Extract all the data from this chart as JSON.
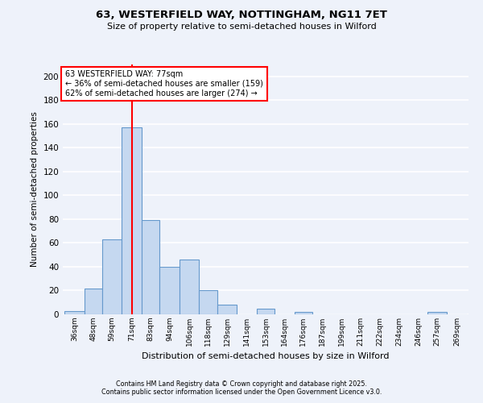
{
  "title": "63, WESTERFIELD WAY, NOTTINGHAM, NG11 7ET",
  "subtitle": "Size of property relative to semi-detached houses in Wilford",
  "xlabel": "Distribution of semi-detached houses by size in Wilford",
  "ylabel": "Number of semi-detached properties",
  "bar_labels": [
    "36sqm",
    "48sqm",
    "59sqm",
    "71sqm",
    "83sqm",
    "94sqm",
    "106sqm",
    "118sqm",
    "129sqm",
    "141sqm",
    "153sqm",
    "164sqm",
    "176sqm",
    "187sqm",
    "199sqm",
    "211sqm",
    "222sqm",
    "234sqm",
    "246sqm",
    "257sqm",
    "269sqm"
  ],
  "bar_values": [
    3,
    22,
    63,
    157,
    79,
    40,
    46,
    20,
    8,
    0,
    5,
    0,
    2,
    0,
    0,
    0,
    0,
    0,
    0,
    2,
    0
  ],
  "bar_color": "#c5d8f0",
  "bar_edge_color": "#6699cc",
  "bar_left_edges": [
    36,
    48,
    59,
    71,
    83,
    94,
    106,
    118,
    129,
    141,
    153,
    164,
    176,
    187,
    199,
    211,
    222,
    234,
    246,
    257,
    269
  ],
  "bar_widths": [
    12,
    11,
    12,
    12,
    11,
    12,
    12,
    11,
    12,
    12,
    11,
    12,
    11,
    12,
    12,
    11,
    12,
    12,
    11,
    12,
    12
  ],
  "property_line_x": 77,
  "property_label": "63 WESTERFIELD WAY: 77sqm",
  "annotation_line1": "← 36% of semi-detached houses are smaller (159)",
  "annotation_line2": "62% of semi-detached houses are larger (274) →",
  "ylim": [
    0,
    210
  ],
  "yticks": [
    0,
    20,
    40,
    60,
    80,
    100,
    120,
    140,
    160,
    180,
    200
  ],
  "background_color": "#eef2fa",
  "grid_color": "#ffffff",
  "footer1": "Contains HM Land Registry data © Crown copyright and database right 2025.",
  "footer2": "Contains public sector information licensed under the Open Government Licence v3.0."
}
